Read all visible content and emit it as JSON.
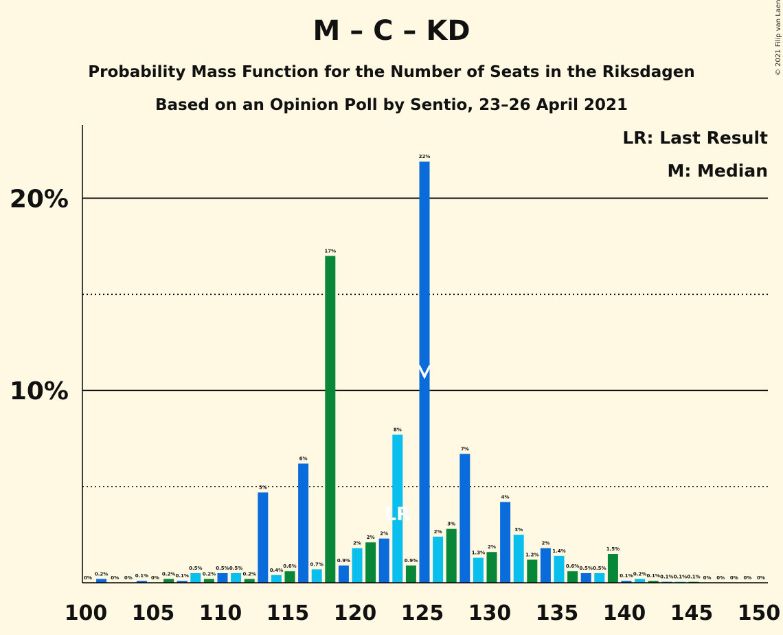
{
  "title": "M – C – KD",
  "subtitle1": "Probability Mass Function for the Number of Seats in the Riksdagen",
  "subtitle2": "Based on an Opinion Poll by Sentio, 23–26 April 2021",
  "copyright": "© 2021 Filip van Laenen",
  "legend": {
    "lr": "LR: Last Result",
    "median": "M: Median"
  },
  "colors": {
    "background": "#FFF9E3",
    "blue": "#0A6BDB",
    "lightblue": "#0ABEED",
    "green": "#078737"
  },
  "chart_data": {
    "type": "bar",
    "xlim": [
      100,
      150
    ],
    "ylim": [
      0,
      24
    ],
    "x_ticks": [
      100,
      105,
      110,
      115,
      120,
      125,
      130,
      135,
      140,
      145,
      150
    ],
    "y_ticks": [
      {
        "value": 10,
        "label": "10%"
      },
      {
        "value": 20,
        "label": "20%"
      }
    ],
    "dotted_lines": [
      5,
      15
    ],
    "last_result": {
      "seat": 123,
      "label": "LR"
    },
    "median": {
      "seat": 125
    },
    "bars": [
      {
        "seat": 100,
        "value": 0,
        "label": "0%",
        "color": "lightblue"
      },
      {
        "seat": 101,
        "value": 0.2,
        "label": "0.2%",
        "color": "blue"
      },
      {
        "seat": 102,
        "value": 0,
        "label": "0%",
        "color": "lightblue"
      },
      {
        "seat": 103,
        "value": 0,
        "label": "0%",
        "color": "green"
      },
      {
        "seat": 104,
        "value": 0.1,
        "label": "0.1%",
        "color": "blue"
      },
      {
        "seat": 105,
        "value": 0,
        "label": "0%",
        "color": "lightblue"
      },
      {
        "seat": 106,
        "value": 0.2,
        "label": "0.2%",
        "color": "green"
      },
      {
        "seat": 107,
        "value": 0.1,
        "label": "0.1%",
        "color": "blue"
      },
      {
        "seat": 108,
        "value": 0.5,
        "label": "0.5%",
        "color": "lightblue"
      },
      {
        "seat": 109,
        "value": 0.2,
        "label": "0.2%",
        "color": "green"
      },
      {
        "seat": 110,
        "value": 0.5,
        "label": "0.5%",
        "color": "blue"
      },
      {
        "seat": 111,
        "value": 0.5,
        "label": "0.5%",
        "color": "lightblue"
      },
      {
        "seat": 112,
        "value": 0.2,
        "label": "0.2%",
        "color": "green"
      },
      {
        "seat": 113,
        "value": 4.7,
        "label": "5%",
        "color": "blue"
      },
      {
        "seat": 114,
        "value": 0.4,
        "label": "0.4%",
        "color": "lightblue"
      },
      {
        "seat": 115,
        "value": 0.6,
        "label": "0.6%",
        "color": "green"
      },
      {
        "seat": 116,
        "value": 6.2,
        "label": "6%",
        "color": "blue"
      },
      {
        "seat": 117,
        "value": 0.7,
        "label": "0.7%",
        "color": "lightblue"
      },
      {
        "seat": 118,
        "value": 17.0,
        "label": "17%",
        "color": "green"
      },
      {
        "seat": 119,
        "value": 0.9,
        "label": "0.9%",
        "color": "blue"
      },
      {
        "seat": 120,
        "value": 1.8,
        "label": "2%",
        "color": "lightblue"
      },
      {
        "seat": 121,
        "value": 2.1,
        "label": "2%",
        "color": "green"
      },
      {
        "seat": 122,
        "value": 2.3,
        "label": "2%",
        "color": "blue"
      },
      {
        "seat": 123,
        "value": 7.7,
        "label": "8%",
        "color": "lightblue"
      },
      {
        "seat": 124,
        "value": 0.9,
        "label": "0.9%",
        "color": "green"
      },
      {
        "seat": 125,
        "value": 21.9,
        "label": "22%",
        "color": "blue"
      },
      {
        "seat": 126,
        "value": 2.4,
        "label": "2%",
        "color": "lightblue"
      },
      {
        "seat": 127,
        "value": 2.8,
        "label": "3%",
        "color": "green"
      },
      {
        "seat": 128,
        "value": 6.7,
        "label": "7%",
        "color": "blue"
      },
      {
        "seat": 129,
        "value": 1.3,
        "label": "1.3%",
        "color": "lightblue"
      },
      {
        "seat": 130,
        "value": 1.6,
        "label": "2%",
        "color": "green"
      },
      {
        "seat": 131,
        "value": 4.2,
        "label": "4%",
        "color": "blue"
      },
      {
        "seat": 132,
        "value": 2.5,
        "label": "3%",
        "color": "lightblue"
      },
      {
        "seat": 133,
        "value": 1.2,
        "label": "1.2%",
        "color": "green"
      },
      {
        "seat": 134,
        "value": 1.8,
        "label": "2%",
        "color": "blue"
      },
      {
        "seat": 135,
        "value": 1.4,
        "label": "1.4%",
        "color": "lightblue"
      },
      {
        "seat": 136,
        "value": 0.6,
        "label": "0.6%",
        "color": "green"
      },
      {
        "seat": 137,
        "value": 0.5,
        "label": "0.5%",
        "color": "blue"
      },
      {
        "seat": 138,
        "value": 0.5,
        "label": "0.5%",
        "color": "lightblue"
      },
      {
        "seat": 139,
        "value": 1.5,
        "label": "1.5%",
        "color": "green"
      },
      {
        "seat": 140,
        "value": 0.1,
        "label": "0.1%",
        "color": "blue"
      },
      {
        "seat": 141,
        "value": 0.2,
        "label": "0.2%",
        "color": "lightblue"
      },
      {
        "seat": 142,
        "value": 0.1,
        "label": "0.1%",
        "color": "green"
      },
      {
        "seat": 143,
        "value": 0.05,
        "label": "0.1%",
        "color": "blue"
      },
      {
        "seat": 144,
        "value": 0.05,
        "label": "0.1%",
        "color": "lightblue"
      },
      {
        "seat": 145,
        "value": 0.05,
        "label": "0.1%",
        "color": "green"
      },
      {
        "seat": 146,
        "value": 0,
        "label": "0%",
        "color": "blue"
      },
      {
        "seat": 147,
        "value": 0,
        "label": "0%",
        "color": "lightblue"
      },
      {
        "seat": 148,
        "value": 0,
        "label": "0%",
        "color": "green"
      },
      {
        "seat": 149,
        "value": 0,
        "label": "0%",
        "color": "blue"
      },
      {
        "seat": 150,
        "value": 0,
        "label": "0%",
        "color": "lightblue"
      }
    ]
  }
}
